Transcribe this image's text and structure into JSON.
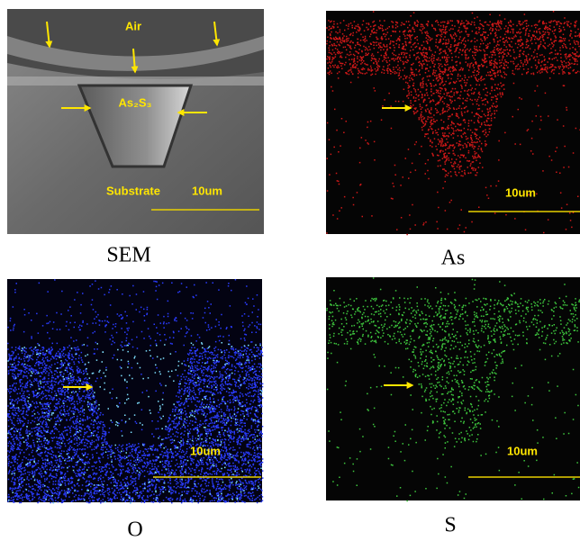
{
  "panels": [
    {
      "caption": "SEM",
      "labels": [
        "Air",
        "As₂S₃",
        "Substrate"
      ],
      "scale": "10um"
    },
    {
      "caption": "As",
      "scale": "10um"
    },
    {
      "caption": "O",
      "scale": "10um"
    },
    {
      "caption": "S",
      "scale": "10um"
    }
  ]
}
